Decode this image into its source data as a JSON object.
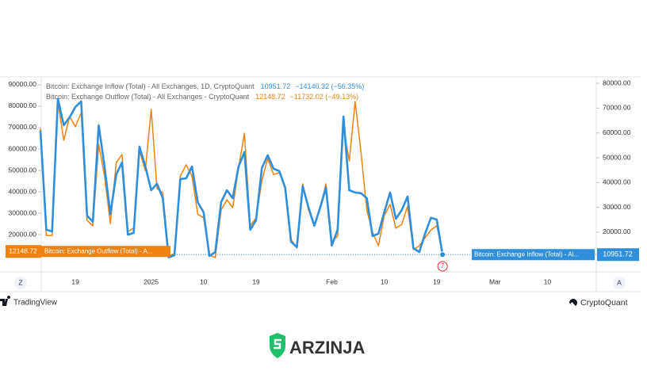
{
  "chart_data": {
    "type": "line",
    "categories": [
      null,
      null,
      null,
      null,
      null,
      null,
      "19",
      null,
      null,
      null,
      null,
      null,
      null,
      null,
      null,
      null,
      null,
      null,
      null,
      "2025",
      null,
      null,
      null,
      null,
      null,
      null,
      null,
      null,
      "10",
      null,
      null,
      null,
      null,
      null,
      null,
      null,
      null,
      "19",
      null,
      null,
      null,
      null,
      null,
      null,
      null,
      null,
      null,
      null,
      null,
      null,
      "Feb",
      null,
      null,
      null,
      null,
      null,
      null,
      null,
      null,
      "10",
      null,
      null,
      null,
      null,
      null,
      null,
      null,
      null,
      "19",
      null,
      null,
      null,
      null,
      null,
      null,
      null,
      null,
      null,
      "Mar",
      null,
      null,
      null,
      null,
      null,
      null,
      null,
      null,
      "10",
      null,
      null,
      null,
      null,
      null,
      null,
      null,
      null
    ],
    "series": [
      {
        "name": "Bitcoin: Exchange Inflow (Total) - All Exchanges, 1D, CryptoQuant",
        "change": "−14140.32 (−56.35%)",
        "tag": "Bitcoin: Exchange Inflow (Total) - Al...",
        "color": "#2f8fdc",
        "axis": "y2",
        "values": [
          60900,
          21000,
          20300,
          73700,
          63100,
          66300,
          70500,
          72700,
          26700,
          24200,
          63100,
          46500,
          27300,
          43300,
          48100,
          19000,
          19700,
          54500,
          46500,
          36900,
          39500,
          33700,
          9800,
          10700,
          41400,
          41700,
          46500,
          32100,
          28000,
          10400,
          12000,
          32100,
          36900,
          33700,
          46500,
          52300,
          21000,
          24800,
          45900,
          51000,
          45600,
          44600,
          37900,
          16200,
          13900,
          38500,
          29900,
          22600,
          29900,
          37900,
          14600,
          21000,
          66600,
          36900,
          36000,
          35700,
          33700,
          18400,
          19400,
          28000,
          36000,
          25400,
          28900,
          34400,
          13600,
          12000,
          19400,
          25800,
          25100,
          10951.72,
          null,
          null,
          null,
          null,
          null,
          null,
          null,
          null,
          null,
          null,
          null,
          null,
          null,
          null,
          null,
          null,
          null,
          null,
          null,
          null,
          null,
          null,
          null,
          null,
          null,
          null
        ]
      },
      {
        "name": "Bitcoin: Exchange Outflow (Total) - All Exchanges - CryptoQuant",
        "change": "−11732.02 (−49.13%)",
        "tag": "Bitcoin: Exchange Outflow (Total) - A...",
        "color": "#f0820f",
        "axis": "y",
        "values": [
          69600,
          19600,
          19600,
          82200,
          64100,
          75200,
          70400,
          77000,
          26700,
          24100,
          62200,
          47400,
          25200,
          53700,
          57400,
          21500,
          23000,
          59300,
          50000,
          78500,
          41500,
          39600,
          10000,
          11100,
          47400,
          52600,
          47400,
          29600,
          27800,
          10400,
          9300,
          31500,
          36300,
          32600,
          51100,
          67400,
          24100,
          27800,
          45200,
          55600,
          48100,
          48900,
          41500,
          17800,
          13700,
          43700,
          31500,
          24100,
          32600,
          43700,
          16700,
          19300,
          70400,
          54400,
          82200,
          58500,
          31500,
          21100,
          14800,
          28900,
          34100,
          23000,
          24800,
          33300,
          13000,
          14800,
          18500,
          22200,
          24100,
          12148.72,
          null,
          null,
          null,
          null,
          null,
          null,
          null,
          null,
          null,
          null,
          null,
          null,
          null,
          null,
          null,
          null,
          null,
          null,
          null,
          null,
          null,
          null,
          null,
          null,
          null,
          null
        ]
      }
    ],
    "ylim": [
      2600,
      93700
    ],
    "yticks": [
      {
        "value": 20000,
        "label": "20000.00"
      },
      {
        "value": 30000,
        "label": "30000.00"
      },
      {
        "value": 40000,
        "label": "40000.00"
      },
      {
        "value": 50000,
        "label": "50000.00"
      },
      {
        "value": 60000,
        "label": "60000.00"
      },
      {
        "value": 70000,
        "label": "70000.00"
      },
      {
        "value": 80000,
        "label": "80000.00"
      },
      {
        "value": 90000,
        "label": "90000.00"
      }
    ],
    "y2lim": [
      4000,
      82600
    ],
    "y2ticks": [
      {
        "value": 20000,
        "label": "20000.00"
      },
      {
        "value": 30000,
        "label": "30000.00"
      },
      {
        "value": 40000,
        "label": "40000.00"
      },
      {
        "value": 50000,
        "label": "50000.00"
      },
      {
        "value": 60000,
        "label": "60000.00"
      },
      {
        "value": 70000,
        "label": "70000.00"
      },
      {
        "value": 80000,
        "label": "80000.00"
      }
    ],
    "grid": false,
    "event_marker": "7",
    "axis_buttons": [
      "Z",
      "A"
    ]
  },
  "footer": {
    "left": "TradingView",
    "right": "CryptoQuant"
  },
  "watermark": "ARZINJA"
}
